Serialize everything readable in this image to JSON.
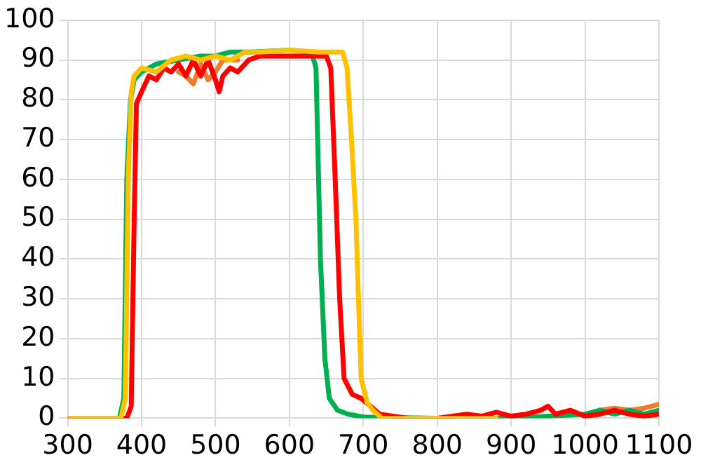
{
  "chart_data": {
    "type": "line",
    "xlim": [
      300,
      1100
    ],
    "xticks": [
      300,
      400,
      500,
      600,
      700,
      800,
      900,
      1000,
      1100
    ],
    "ylim": [
      0,
      100
    ],
    "yticks": [
      0,
      10,
      20,
      30,
      40,
      50,
      60,
      70,
      80,
      90,
      100
    ],
    "grid": true,
    "legend": false,
    "marker": "none",
    "line_style": "solid",
    "series": [
      {
        "color": "#ed7d31",
        "x": [
          450,
          460,
          470,
          480,
          490,
          500,
          510,
          530,
          700,
          1020,
          1040,
          1060,
          1080,
          1100
        ],
        "values": [
          87,
          86,
          84,
          89,
          85,
          87,
          90,
          90,
          null,
          2,
          2.5,
          2,
          2.5,
          3.5
        ]
      },
      {
        "color": "#00b050",
        "x": [
          300,
          370,
          376,
          380,
          385,
          390,
          400,
          420,
          450,
          480,
          500,
          520,
          550,
          600,
          630,
          636,
          642,
          648,
          654,
          665,
          680,
          700,
          800,
          900,
          950,
          1000,
          1020,
          1040,
          1060,
          1080,
          1100
        ],
        "values": [
          0,
          0,
          5,
          60,
          80,
          85,
          87,
          89,
          90,
          91,
          91,
          92,
          92,
          92.5,
          92,
          88,
          40,
          15,
          5,
          2,
          1,
          0.3,
          0,
          0,
          0.5,
          1,
          2,
          1,
          2,
          1,
          2
        ]
      },
      {
        "color": "#ff0000",
        "x": [
          300,
          380,
          386,
          390,
          393,
          400,
          410,
          420,
          430,
          440,
          450,
          460,
          470,
          480,
          490,
          500,
          505,
          510,
          520,
          530,
          545,
          560,
          600,
          640,
          650,
          656,
          662,
          668,
          674,
          685,
          697,
          710,
          722,
          740,
          760,
          800,
          840,
          860,
          880,
          900,
          920,
          940,
          950,
          960,
          980,
          1000,
          1020,
          1040,
          1060,
          1080,
          1100
        ],
        "values": [
          0,
          0,
          3,
          50,
          79,
          82,
          86,
          85,
          88,
          87,
          89,
          86,
          90,
          86,
          90,
          85,
          82,
          86,
          88,
          87,
          90,
          91,
          91,
          91,
          91,
          88,
          60,
          30,
          10,
          6,
          5,
          3,
          1,
          0.5,
          0,
          0,
          1,
          0.5,
          1.5,
          0.5,
          1,
          2,
          3,
          1,
          2,
          0.5,
          1,
          2,
          1,
          0.5,
          1
        ]
      },
      {
        "color": "#ffc000",
        "x": [
          300,
          372,
          378,
          382,
          386,
          390,
          400,
          420,
          440,
          460,
          480,
          500,
          520,
          540,
          560,
          600,
          640,
          660,
          672,
          678,
          684,
          690,
          697,
          705,
          713,
          725,
          800,
          880
        ],
        "values": [
          0,
          0,
          5,
          60,
          82,
          86,
          88,
          87,
          90,
          91,
          90,
          91,
          90,
          92,
          92,
          92.5,
          92,
          92,
          92,
          88,
          70,
          50,
          10,
          4,
          2,
          0,
          0,
          0
        ]
      }
    ]
  }
}
